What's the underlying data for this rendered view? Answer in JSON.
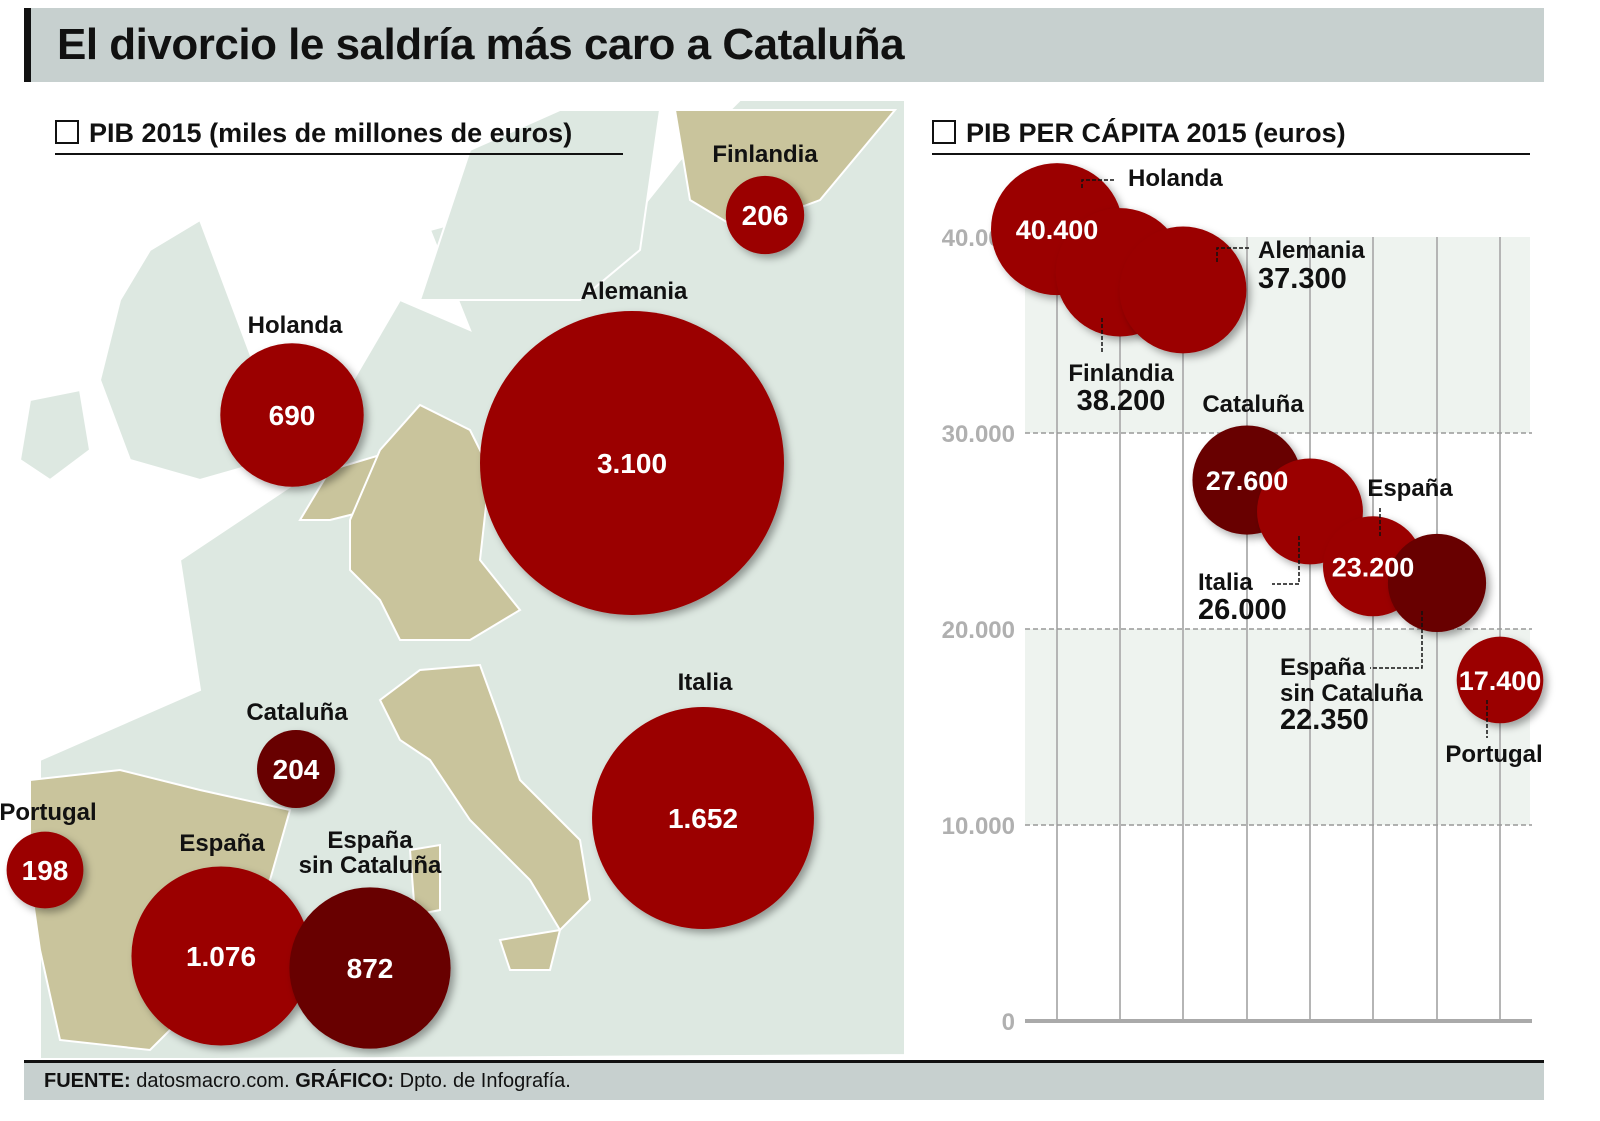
{
  "title": "El divorcio le saldría más caro a Cataluña",
  "footer": {
    "source_label": "FUENTE:",
    "source": "datosmacro.com.",
    "graphic_label": "GRÁFICO:",
    "graphic": "Dpto. de Infografía."
  },
  "colors": {
    "bubble": "#9b0000",
    "bubble_dark": "#680000",
    "land": "#dde8e1",
    "highlight_land": "#c9c49c",
    "title_bar": "#c7d0cf"
  },
  "chart_data": [
    {
      "type": "bubble-map",
      "title": "PIB 2015 (miles de millones de euros)",
      "points": [
        {
          "name": "Finlandia",
          "value": 206,
          "value_label": "206"
        },
        {
          "name": "Holanda",
          "value": 690,
          "value_label": "690"
        },
        {
          "name": "Alemania",
          "value": 3100,
          "value_label": "3.100"
        },
        {
          "name": "Italia",
          "value": 1652,
          "value_label": "1.652"
        },
        {
          "name": "Cataluña",
          "value": 204,
          "value_label": "204",
          "dark": true
        },
        {
          "name": "Portugal",
          "value": 198,
          "value_label": "198"
        },
        {
          "name": "España",
          "value": 1076,
          "value_label": "1.076"
        },
        {
          "name": "España sin Cataluña",
          "value": 872,
          "value_label": "872",
          "dark": true
        }
      ]
    },
    {
      "type": "scatter",
      "title": "PIB PER CÁPITA 2015 (euros)",
      "ylim": [
        0,
        40000
      ],
      "yticks": [
        0,
        10000,
        20000,
        30000,
        40000
      ],
      "ytick_labels": [
        "0",
        "10.000",
        "20.000",
        "30.000",
        "40.000"
      ],
      "grid": true,
      "points": [
        {
          "name": "Holanda",
          "value": 40400,
          "value_label": "40.400"
        },
        {
          "name": "Finlandia",
          "value": 38200,
          "value_label": "38.200"
        },
        {
          "name": "Alemania",
          "value": 37300,
          "value_label": "37.300"
        },
        {
          "name": "Cataluña",
          "value": 27600,
          "value_label": "27.600",
          "dark": true
        },
        {
          "name": "Italia",
          "value": 26000,
          "value_label": "26.000"
        },
        {
          "name": "España",
          "value": 23200,
          "value_label": "23.200"
        },
        {
          "name": "España sin Cataluña",
          "value": 22350,
          "value_label": "22.350",
          "dark": true
        },
        {
          "name": "Portugal",
          "value": 17400,
          "value_label": "17.400"
        }
      ]
    }
  ]
}
